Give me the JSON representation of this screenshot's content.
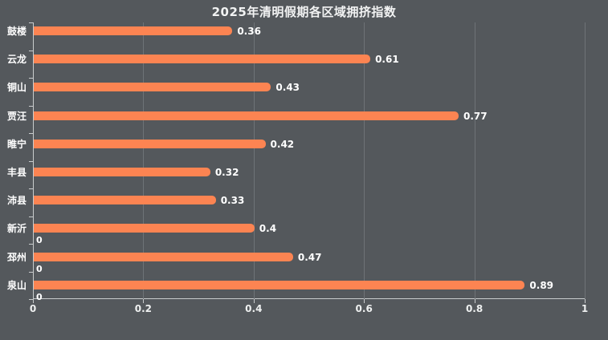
{
  "chart_data": {
    "type": "bar",
    "orientation": "horizontal",
    "title": "2025年清明假期各区域拥挤指数",
    "categories": [
      "鼓楼",
      "云龙",
      "铜山",
      "贾汪",
      "睢宁",
      "丰县",
      "沛县",
      "新沂",
      "邳州",
      "泉山"
    ],
    "values": [
      0.36,
      0.61,
      0.43,
      0.77,
      0.42,
      0.32,
      0.33,
      0.4,
      0.47,
      0.89
    ],
    "value_labels": [
      "0.36",
      "0.61",
      "0.43",
      "0.77",
      "0.42",
      "0.32",
      "0.33",
      "0.4",
      "0.47",
      "0.89"
    ],
    "zero_series_labels": [
      null,
      null,
      null,
      null,
      null,
      null,
      null,
      "0",
      "0",
      "0"
    ],
    "xlabel": "",
    "ylabel": "",
    "xlim": [
      0,
      1
    ],
    "x_ticks": [
      {
        "value": 0,
        "label": "0"
      },
      {
        "value": 0.2,
        "label": "0.2"
      },
      {
        "value": 0.4,
        "label": "0.4"
      },
      {
        "value": 0.6,
        "label": "0.6"
      },
      {
        "value": 0.8,
        "label": "0.8"
      },
      {
        "value": 1,
        "label": "1"
      }
    ],
    "grid": true,
    "legend": false,
    "colors": {
      "bar": "#fc8452",
      "background": "#54585c",
      "label_text": "#ffffff",
      "axis": "#c9cccd",
      "gridline": "#6e7377"
    }
  }
}
